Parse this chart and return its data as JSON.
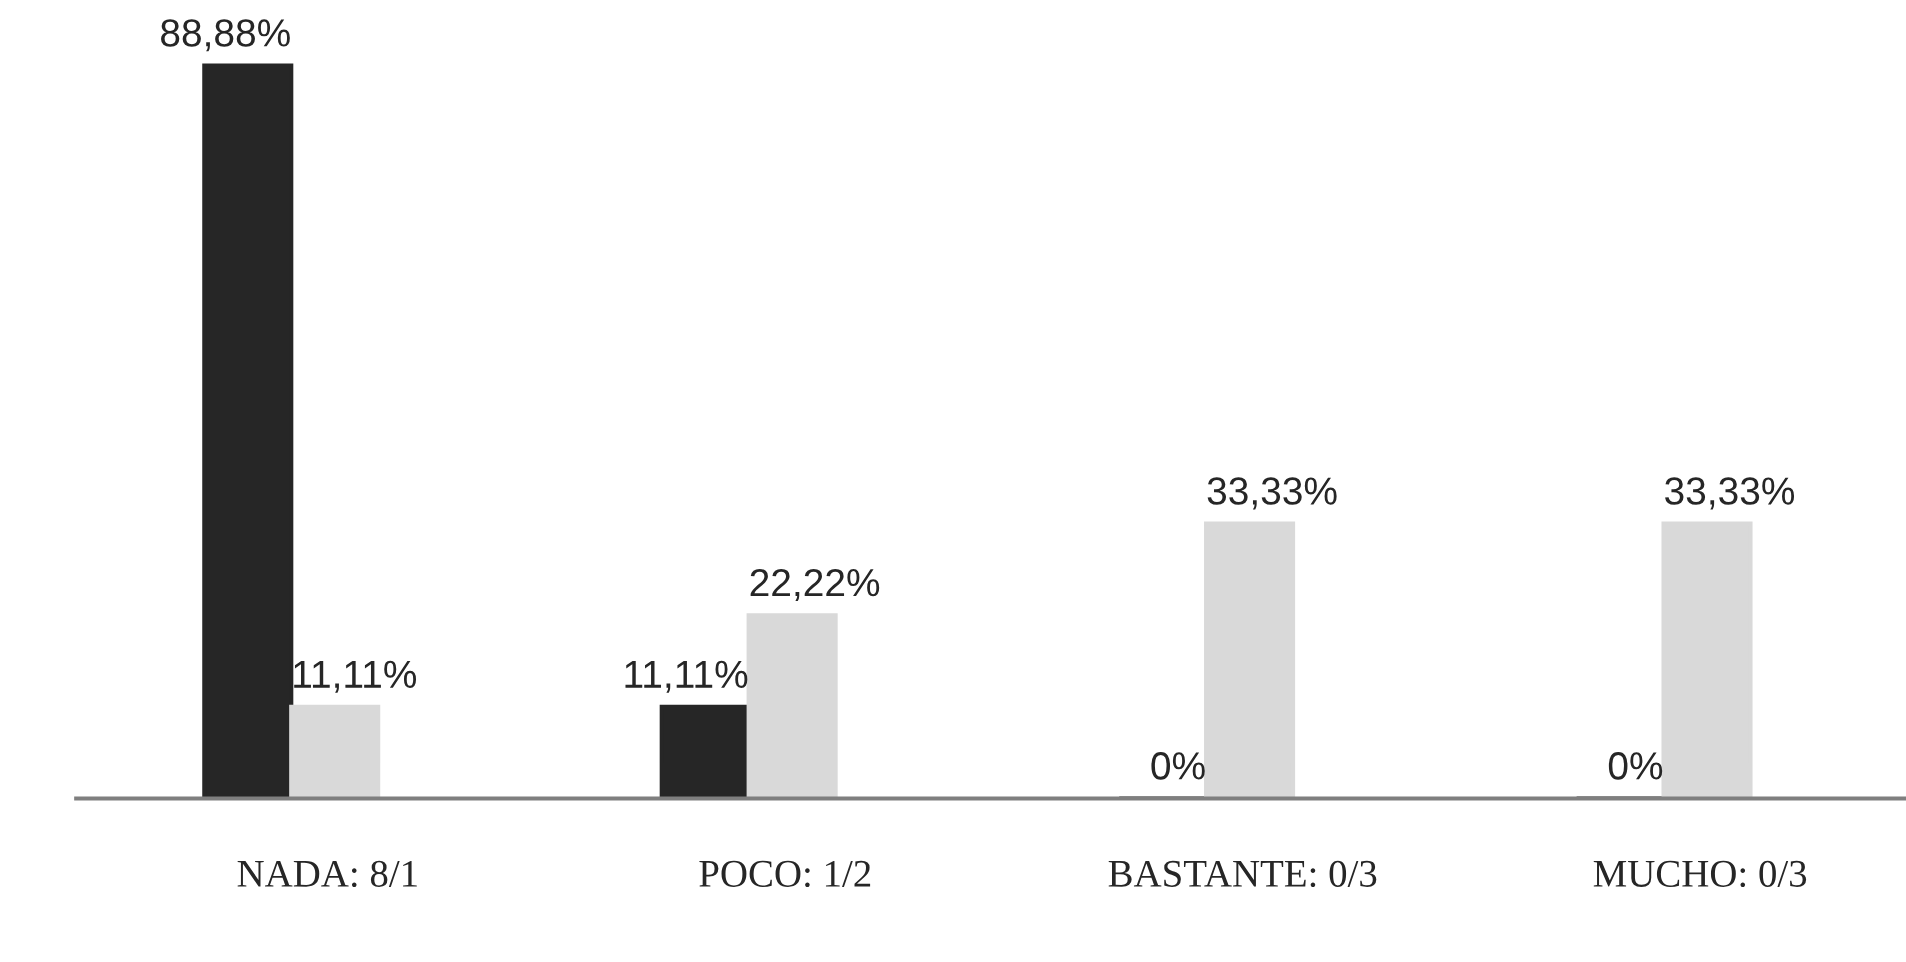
{
  "chart_data": {
    "type": "bar",
    "categories": [
      "NADA: 8/1",
      "POCO: 1/2",
      "BASTANTE: 0/3",
      "MUCHO: 0/3"
    ],
    "series": [
      {
        "color": "#262626",
        "values": [
          88.88,
          11.11,
          0,
          0
        ],
        "value_labels": [
          "88,88%",
          "11,11%",
          "0%",
          "0%"
        ]
      },
      {
        "color": "#d9d9d9",
        "values": [
          11.11,
          22.22,
          33.33,
          33.33
        ],
        "value_labels": [
          "11,11%",
          "22,22%",
          "33,33%",
          "33,33%"
        ]
      }
    ],
    "grid": false
  }
}
